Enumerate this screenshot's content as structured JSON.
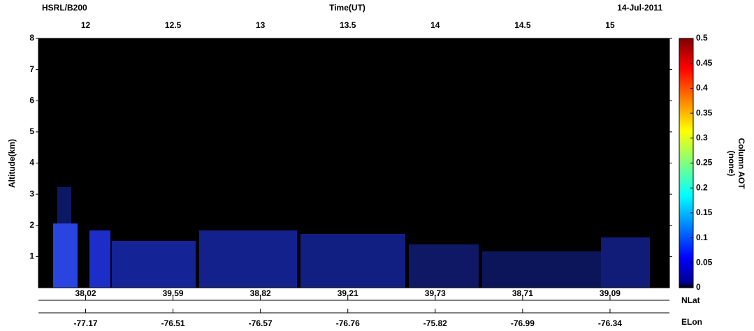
{
  "chart_data": {
    "type": "heatmap",
    "title": "HSRL/B200",
    "date": "14-Jul-2011",
    "xlabel": "Time(UT)",
    "ylabel": "Altitude(km)",
    "xlim": [
      11.73,
      15.34
    ],
    "xticks": [
      12,
      12.5,
      13,
      13.5,
      14,
      14.5,
      15
    ],
    "ylim": [
      0,
      8
    ],
    "yticks": [
      1,
      2,
      3,
      4,
      5,
      6,
      7,
      8
    ],
    "colorbar": {
      "label": "Column AOT",
      "unit": "(none)",
      "lim": [
        0,
        0.5
      ],
      "ticks": [
        0,
        0.05,
        0.1,
        0.15,
        0.2,
        0.25,
        0.3,
        0.35,
        0.4,
        0.45,
        0.5
      ]
    },
    "track": {
      "nlat_label": "NLat",
      "elon_label": "ELon",
      "nlat": [
        38.02,
        39.59,
        38.82,
        39.21,
        39.73,
        38.71,
        39.09
      ],
      "elon": [
        -77.17,
        -76.51,
        -76.57,
        -76.76,
        -75.82,
        -76.99,
        -76.34
      ]
    }
  }
}
